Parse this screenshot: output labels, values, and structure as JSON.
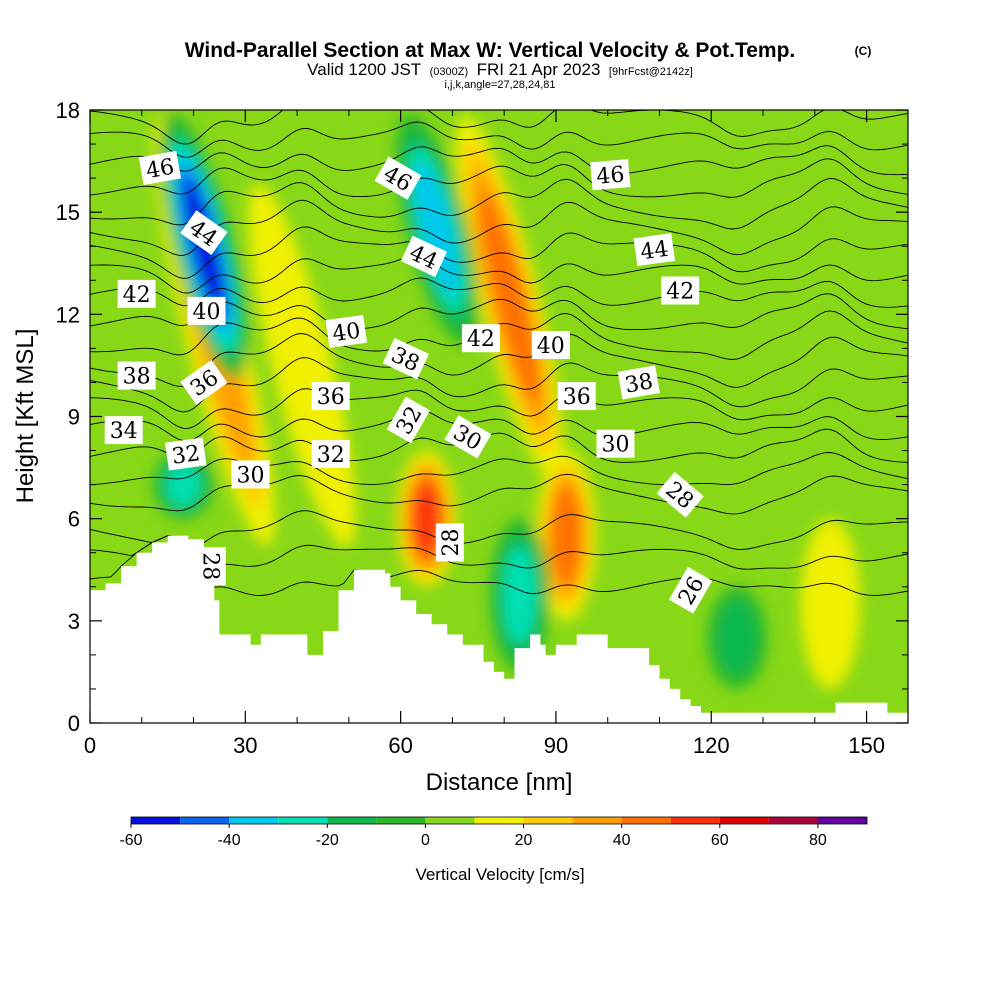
{
  "title": {
    "main": "Wind-Parallel Section at Max W: Vertical Velocity & Pot.Temp.",
    "copyright": "(C)",
    "valid_prefix": "Valid 1200 JST",
    "valid_utc": "(0300Z)",
    "valid_date": "FRI 21 Apr 2023",
    "forecast": "[9hrFcst@2142z]",
    "indices": "i,j,k,angle=27,28,24,81"
  },
  "chart_data": {
    "type": "heatmap",
    "xlabel": "Distance [nm]",
    "ylabel": "Height [Kft MSL]",
    "xlim": [
      0,
      158
    ],
    "ylim": [
      0,
      18
    ],
    "x_ticks": [
      0,
      30,
      60,
      90,
      120,
      150
    ],
    "y_ticks": [
      0,
      3,
      6,
      9,
      12,
      15,
      18
    ],
    "colorbar": {
      "label": "Vertical Velocity [cm/s]",
      "levels": [
        -60,
        -50,
        -40,
        -30,
        -20,
        -10,
        0,
        10,
        20,
        30,
        40,
        50,
        60,
        70,
        80,
        90
      ],
      "tick_labels": [
        "-60",
        "-40",
        "-20",
        "0",
        "20",
        "40",
        "60",
        "80"
      ],
      "tick_values": [
        -60,
        -40,
        -20,
        0,
        20,
        40,
        60,
        80
      ],
      "colors": [
        "#0010e0",
        "#0a64f0",
        "#00c8f0",
        "#00e0b4",
        "#10b850",
        "#2ab82a",
        "#88d818",
        "#f0f000",
        "#ffcc00",
        "#ffa000",
        "#ff7000",
        "#ff3010",
        "#e00000",
        "#b0003c",
        "#6000a0"
      ]
    },
    "updraft_cores": [
      {
        "x": 24,
        "top": 18,
        "bottom": 5,
        "peak": 40
      },
      {
        "x": 41,
        "top": 16,
        "bottom": 5,
        "peak": 20
      },
      {
        "x": 65,
        "top": 8,
        "bottom": 4,
        "peak": 60
      },
      {
        "x": 81,
        "top": 18,
        "bottom": 7,
        "peak": 50
      },
      {
        "x": 92,
        "top": 8,
        "bottom": 3,
        "peak": 50
      },
      {
        "x": 143,
        "top": 6,
        "bottom": 1,
        "peak": 20
      }
    ],
    "downdraft_cores": [
      {
        "x": 22,
        "top": 18,
        "bottom": 10,
        "peak": -60
      },
      {
        "x": 67,
        "top": 18,
        "bottom": 11,
        "peak": -40
      },
      {
        "x": 83,
        "top": 6,
        "bottom": 1.5,
        "peak": -30
      },
      {
        "x": 18,
        "top": 8,
        "bottom": 6,
        "peak": -30
      },
      {
        "x": 125,
        "top": 4,
        "bottom": 1,
        "peak": -20
      }
    ],
    "terrain_kft": [
      {
        "x": 0,
        "h": 3.9
      },
      {
        "x": 3,
        "h": 4.1
      },
      {
        "x": 6,
        "h": 4.6
      },
      {
        "x": 9,
        "h": 5.0
      },
      {
        "x": 12,
        "h": 5.3
      },
      {
        "x": 15,
        "h": 5.5
      },
      {
        "x": 19,
        "h": 5.4
      },
      {
        "x": 22,
        "h": 4.8
      },
      {
        "x": 24,
        "h": 3.6
      },
      {
        "x": 25,
        "h": 2.6
      },
      {
        "x": 29,
        "h": 2.6
      },
      {
        "x": 31,
        "h": 2.3
      },
      {
        "x": 33,
        "h": 2.6
      },
      {
        "x": 39,
        "h": 2.6
      },
      {
        "x": 42,
        "h": 2.0
      },
      {
        "x": 45,
        "h": 2.7
      },
      {
        "x": 48,
        "h": 3.9
      },
      {
        "x": 51,
        "h": 4.5
      },
      {
        "x": 57,
        "h": 4.4
      },
      {
        "x": 58,
        "h": 4.0
      },
      {
        "x": 60,
        "h": 3.6
      },
      {
        "x": 63,
        "h": 3.2
      },
      {
        "x": 66,
        "h": 2.9
      },
      {
        "x": 69,
        "h": 2.6
      },
      {
        "x": 72,
        "h": 2.3
      },
      {
        "x": 76,
        "h": 1.8
      },
      {
        "x": 78,
        "h": 1.5
      },
      {
        "x": 80,
        "h": 1.3
      },
      {
        "x": 82,
        "h": 2.2
      },
      {
        "x": 85,
        "h": 2.6
      },
      {
        "x": 87,
        "h": 2.3
      },
      {
        "x": 88,
        "h": 2.0
      },
      {
        "x": 90,
        "h": 2.3
      },
      {
        "x": 94,
        "h": 2.6
      },
      {
        "x": 100,
        "h": 2.2
      },
      {
        "x": 105,
        "h": 2.2
      },
      {
        "x": 108,
        "h": 1.7
      },
      {
        "x": 110,
        "h": 1.3
      },
      {
        "x": 112,
        "h": 1.0
      },
      {
        "x": 114,
        "h": 0.7
      },
      {
        "x": 116,
        "h": 0.5
      },
      {
        "x": 118,
        "h": 0.3
      },
      {
        "x": 120,
        "h": 0.3
      },
      {
        "x": 140,
        "h": 0.3
      },
      {
        "x": 144,
        "h": 0.6
      },
      {
        "x": 150,
        "h": 0.6
      },
      {
        "x": 154,
        "h": 0.3
      },
      {
        "x": 158,
        "h": 0.3
      }
    ],
    "theta_levels": [
      26,
      27,
      28,
      29,
      30,
      31,
      32,
      33,
      34,
      35,
      36,
      37,
      38,
      39,
      40,
      41,
      42,
      43,
      44,
      45,
      46
    ],
    "contour_labels": [
      {
        "text": "46",
        "x": 13.5,
        "y": 16.3,
        "rot": -10
      },
      {
        "text": "44",
        "x": 22,
        "y": 14.4,
        "rot": 35
      },
      {
        "text": "42",
        "x": 9,
        "y": 12.6,
        "rot": 0
      },
      {
        "text": "40",
        "x": 22.5,
        "y": 12.1,
        "rot": 0
      },
      {
        "text": "38",
        "x": 9,
        "y": 10.2,
        "rot": 0
      },
      {
        "text": "36",
        "x": 22,
        "y": 10.0,
        "rot": -35
      },
      {
        "text": "34",
        "x": 6.5,
        "y": 8.6,
        "rot": 0
      },
      {
        "text": "32",
        "x": 18.5,
        "y": 7.9,
        "rot": -8
      },
      {
        "text": "30",
        "x": 31,
        "y": 7.3,
        "rot": 0
      },
      {
        "text": "28",
        "x": 23.5,
        "y": 4.6,
        "rot": 90
      },
      {
        "text": "46",
        "x": 59.5,
        "y": 16.0,
        "rot": 30
      },
      {
        "text": "44",
        "x": 64.5,
        "y": 13.7,
        "rot": 25
      },
      {
        "text": "40",
        "x": 49.5,
        "y": 11.5,
        "rot": -8
      },
      {
        "text": "38",
        "x": 61,
        "y": 10.7,
        "rot": 25
      },
      {
        "text": "36",
        "x": 46.5,
        "y": 9.6,
        "rot": 0
      },
      {
        "text": "32",
        "x": 61.5,
        "y": 8.9,
        "rot": -60
      },
      {
        "text": "32",
        "x": 46.5,
        "y": 7.9,
        "rot": 0
      },
      {
        "text": "30",
        "x": 73,
        "y": 8.4,
        "rot": 30
      },
      {
        "text": "28",
        "x": 69.5,
        "y": 5.3,
        "rot": -90
      },
      {
        "text": "42",
        "x": 75.5,
        "y": 11.3,
        "rot": 0
      },
      {
        "text": "40",
        "x": 89,
        "y": 11.1,
        "rot": 0
      },
      {
        "text": "36",
        "x": 94,
        "y": 9.6,
        "rot": 0
      },
      {
        "text": "30",
        "x": 101.5,
        "y": 8.2,
        "rot": 0
      },
      {
        "text": "46",
        "x": 100.5,
        "y": 16.1,
        "rot": -5
      },
      {
        "text": "44",
        "x": 109,
        "y": 13.9,
        "rot": -8
      },
      {
        "text": "42",
        "x": 114,
        "y": 12.7,
        "rot": 0
      },
      {
        "text": "38",
        "x": 106,
        "y": 10.0,
        "rot": -10
      },
      {
        "text": "28",
        "x": 114,
        "y": 6.7,
        "rot": 40
      },
      {
        "text": "26",
        "x": 116,
        "y": 3.9,
        "rot": -60
      }
    ]
  }
}
